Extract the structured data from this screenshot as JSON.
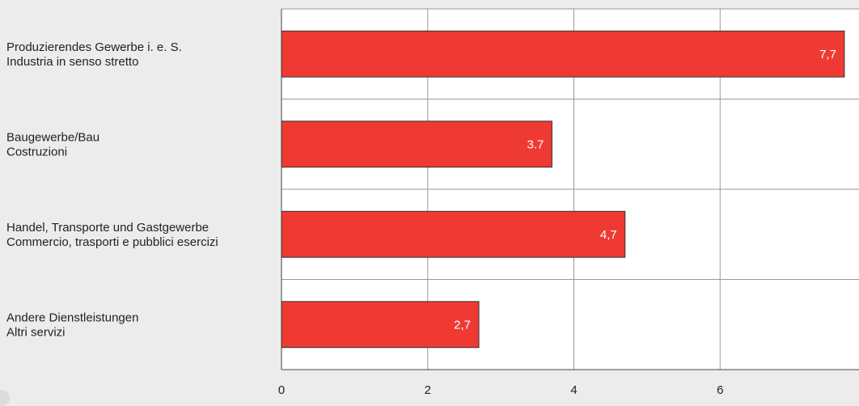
{
  "chart_data": {
    "type": "bar",
    "orientation": "horizontal",
    "categories": [
      [
        "Produzierendes Gewerbe i. e. S.",
        "Industria in senso stretto"
      ],
      [
        "Baugewerbe/Bau",
        "Costruzioni"
      ],
      [
        "Handel, Transporte und Gastgewerbe",
        "Commercio, trasporti e pubblici esercizi"
      ],
      [
        "Andere Dienstleistungen",
        "Altri servizi"
      ]
    ],
    "values": [
      7.7,
      3.7,
      4.7,
      2.7
    ],
    "value_labels": [
      "7,7",
      "3.7",
      "4,7",
      "2,7"
    ],
    "xlim": [
      0,
      7.9
    ],
    "x_ticks": [
      0,
      2,
      4,
      6
    ],
    "x_tick_labels": [
      "0",
      "2",
      "4",
      "6"
    ],
    "grid": true,
    "colors": {
      "bar": "#ee3a33",
      "bar_stroke": "#333333",
      "plot_bg": "#ffffff",
      "page_bg": "#ececec",
      "grid": "#999999"
    }
  }
}
